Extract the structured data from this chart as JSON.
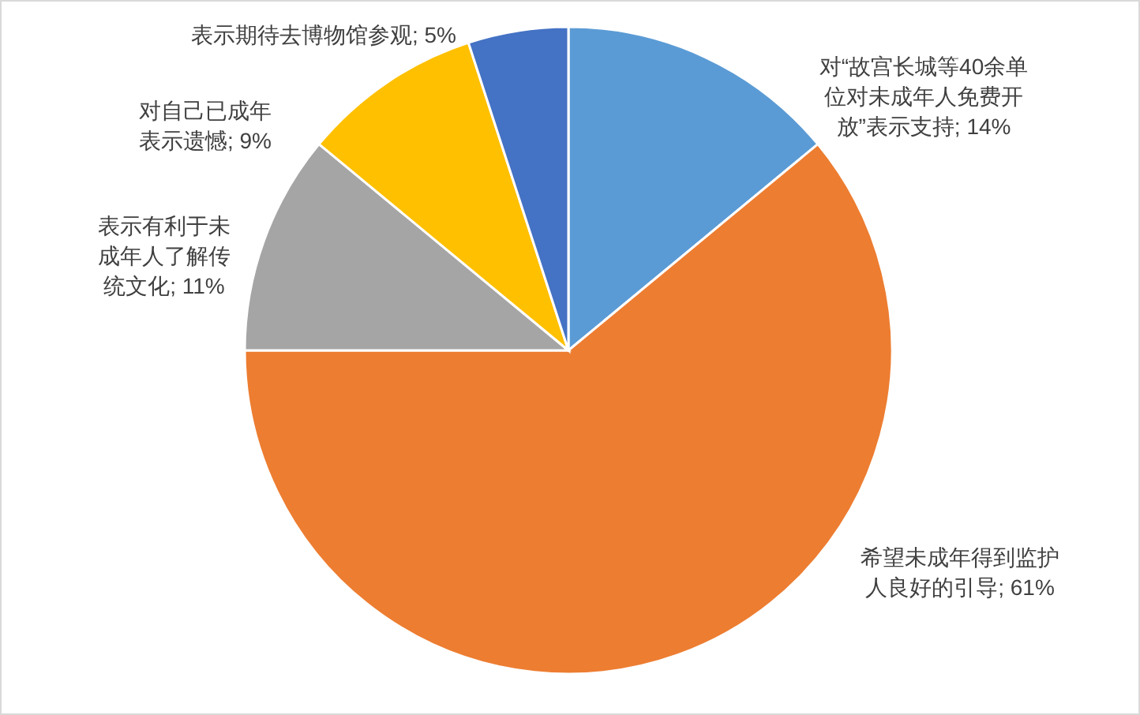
{
  "chart_data": {
    "type": "pie",
    "categories": [
      "对“故宫长城等40余单位对未成年人免费开放”表示支持",
      "希望未成年得到监护人良好的引导",
      "表示有利于未成年人了解传统文化",
      "对自己已成年表示遗憾",
      "表示期待去博物馆参观"
    ],
    "values": [
      14,
      61,
      11,
      9,
      5
    ],
    "colors": [
      "#5b9bd5",
      "#ed7d31",
      "#a5a5a5",
      "#ffc000",
      "#4472c4"
    ],
    "value_labels": [
      "14%",
      "61%",
      "11%",
      "9%",
      "5%"
    ]
  }
}
